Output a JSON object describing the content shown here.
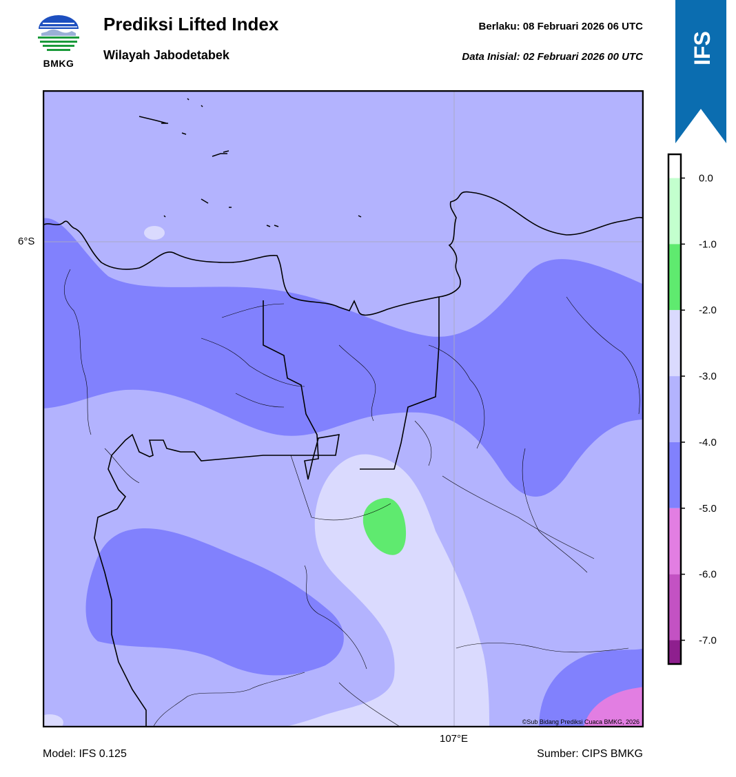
{
  "header": {
    "logo_text": "BMKG",
    "title": "Prediksi Lifted Index",
    "subtitle": "Wilayah Jabodetabek",
    "valid_time": "Berlaku:  08 Februari 2026 06 UTC",
    "init_time": "Data Inisial:  02 Februari 2026 00 UTC"
  },
  "badge": {
    "label": "IFS",
    "color": "#0b6db0"
  },
  "map": {
    "lat_label": "6°S",
    "lon_label": "107°E",
    "copyright": "©Sub Bidang Prediksi Cuaca BMKG, 2026",
    "fill_colors": {
      "lt_minus4": "#8181fd",
      "minus4_to_minus3": "#b3b3fe",
      "minus3_to_minus2": "#dadafe",
      "minus2_to_minus1": "#5fea6f",
      "minus6_to_minus5": "#e27ee2"
    }
  },
  "colorbar": {
    "ticks": [
      "0.0",
      "-1.0",
      "-2.0",
      "-3.0",
      "-4.0",
      "-5.0",
      "-6.0",
      "-7.0"
    ],
    "segments": [
      {
        "from": 0.5,
        "to": 0.0,
        "color": "#ffffff"
      },
      {
        "from": 0.0,
        "to": -1.0,
        "color": "#c3ffce"
      },
      {
        "from": -1.0,
        "to": -2.0,
        "color": "#5fea6f"
      },
      {
        "from": -2.0,
        "to": -3.0,
        "color": "#dadafe"
      },
      {
        "from": -3.0,
        "to": -4.0,
        "color": "#b3b3fe"
      },
      {
        "from": -4.0,
        "to": -5.0,
        "color": "#8181fd"
      },
      {
        "from": -5.0,
        "to": -6.0,
        "color": "#e27ee2"
      },
      {
        "from": -6.0,
        "to": -7.0,
        "color": "#c352c3"
      },
      {
        "from": -7.0,
        "to": -7.4,
        "color": "#8e1f8e"
      }
    ]
  },
  "footer": {
    "model": "Model: IFS 0.125",
    "source": "Sumber: CIPS BMKG"
  }
}
